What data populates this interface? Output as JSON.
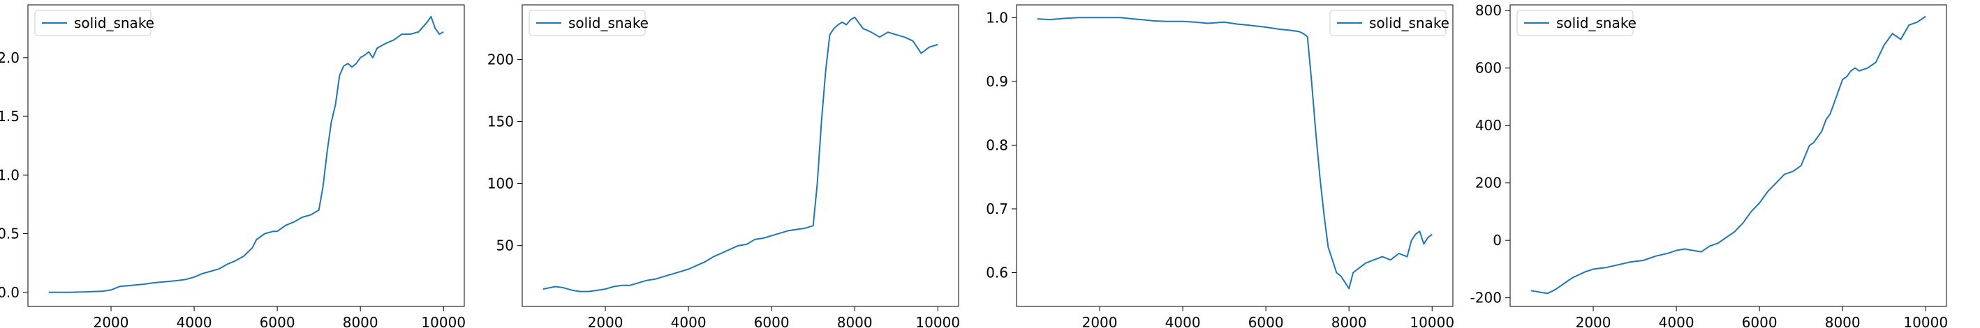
{
  "chart_data": [
    {
      "type": "line",
      "title": "",
      "xlabel": "",
      "ylabel": "",
      "xlim": [
        0,
        10500
      ],
      "ylim": [
        -0.12,
        2.45
      ],
      "xticks": [
        2000,
        4000,
        6000,
        8000,
        10000
      ],
      "yticks": [
        0.0,
        0.5,
        1.0,
        1.5,
        2.0
      ],
      "ytick_format": "1",
      "legend": "upper-left",
      "series": [
        {
          "name": "solid_snake",
          "color": "#1f77b4",
          "x": [
            500,
            1000,
            1500,
            1800,
            2000,
            2200,
            2500,
            2800,
            3000,
            3300,
            3600,
            3800,
            4000,
            4200,
            4400,
            4600,
            4800,
            5000,
            5200,
            5400,
            5500,
            5700,
            5900,
            6000,
            6200,
            6400,
            6600,
            6800,
            7000,
            7100,
            7200,
            7300,
            7400,
            7500,
            7600,
            7700,
            7800,
            7900,
            8000,
            8100,
            8200,
            8300,
            8400,
            8600,
            8800,
            9000,
            9200,
            9400,
            9600,
            9700,
            9800,
            9900,
            10000
          ],
          "y": [
            0.0,
            0.0,
            0.005,
            0.01,
            0.02,
            0.05,
            0.06,
            0.07,
            0.08,
            0.09,
            0.1,
            0.11,
            0.13,
            0.16,
            0.18,
            0.2,
            0.24,
            0.27,
            0.31,
            0.38,
            0.45,
            0.5,
            0.52,
            0.52,
            0.57,
            0.6,
            0.64,
            0.66,
            0.7,
            0.9,
            1.2,
            1.45,
            1.6,
            1.85,
            1.93,
            1.95,
            1.92,
            1.95,
            2.0,
            2.02,
            2.05,
            2.0,
            2.08,
            2.12,
            2.15,
            2.2,
            2.2,
            2.22,
            2.3,
            2.35,
            2.25,
            2.2,
            2.22
          ]
        }
      ]
    },
    {
      "type": "line",
      "title": "",
      "xlabel": "",
      "ylabel": "",
      "xlim": [
        0,
        10500
      ],
      "ylim": [
        1,
        244
      ],
      "xticks": [
        2000,
        4000,
        6000,
        8000,
        10000
      ],
      "yticks": [
        50,
        100,
        150,
        200
      ],
      "ytick_format": "0",
      "legend": "upper-left",
      "series": [
        {
          "name": "solid_snake",
          "color": "#1f77b4",
          "x": [
            500,
            800,
            1000,
            1200,
            1400,
            1600,
            2000,
            2200,
            2400,
            2600,
            2800,
            3000,
            3200,
            3400,
            3600,
            3800,
            4000,
            4200,
            4400,
            4600,
            4800,
            5000,
            5200,
            5400,
            5600,
            5800,
            6000,
            6200,
            6400,
            6600,
            6800,
            7000,
            7100,
            7200,
            7300,
            7400,
            7500,
            7600,
            7700,
            7800,
            7900,
            8000,
            8200,
            8400,
            8600,
            8800,
            9000,
            9200,
            9400,
            9600,
            9800,
            10000
          ],
          "y": [
            15,
            17,
            16,
            14,
            13,
            13,
            15,
            17,
            18,
            18,
            20,
            22,
            23,
            25,
            27,
            29,
            31,
            34,
            37,
            41,
            44,
            47,
            50,
            51,
            55,
            56,
            58,
            60,
            62,
            63,
            64,
            66,
            100,
            150,
            190,
            220,
            225,
            228,
            230,
            228,
            232,
            234,
            225,
            222,
            218,
            222,
            220,
            218,
            215,
            205,
            210,
            212
          ]
        }
      ]
    },
    {
      "type": "line",
      "title": "",
      "xlabel": "",
      "ylabel": "",
      "xlim": [
        0,
        10500
      ],
      "ylim": [
        0.547,
        1.02
      ],
      "xticks": [
        2000,
        4000,
        6000,
        8000,
        10000
      ],
      "yticks": [
        0.6,
        0.7,
        0.8,
        0.9,
        1.0
      ],
      "ytick_format": "1",
      "legend": "upper-right",
      "series": [
        {
          "name": "solid_snake",
          "color": "#1f77b4",
          "x": [
            500,
            800,
            1000,
            1200,
            1500,
            2000,
            2500,
            2800,
            3000,
            3300,
            3600,
            4000,
            4300,
            4600,
            5000,
            5300,
            5600,
            6000,
            6300,
            6600,
            6800,
            6900,
            7000,
            7100,
            7200,
            7300,
            7400,
            7500,
            7600,
            7700,
            7800,
            7900,
            8000,
            8100,
            8200,
            8400,
            8600,
            8800,
            9000,
            9200,
            9400,
            9500,
            9600,
            9700,
            9800,
            9900,
            10000
          ],
          "y": [
            0.998,
            0.997,
            0.998,
            0.999,
            1.0,
            1.0,
            1.0,
            0.998,
            0.997,
            0.995,
            0.994,
            0.994,
            0.993,
            0.991,
            0.993,
            0.99,
            0.988,
            0.985,
            0.982,
            0.98,
            0.978,
            0.975,
            0.97,
            0.9,
            0.82,
            0.75,
            0.69,
            0.64,
            0.62,
            0.6,
            0.595,
            0.585,
            0.575,
            0.6,
            0.605,
            0.615,
            0.62,
            0.625,
            0.62,
            0.63,
            0.625,
            0.65,
            0.66,
            0.665,
            0.645,
            0.655,
            0.66
          ]
        }
      ]
    },
    {
      "type": "line",
      "title": "",
      "xlabel": "",
      "ylabel": "",
      "xlim": [
        0,
        10500
      ],
      "ylim": [
        -230,
        820
      ],
      "xticks": [
        2000,
        4000,
        6000,
        8000,
        10000
      ],
      "yticks": [
        -200,
        0,
        200,
        400,
        600,
        800
      ],
      "ytick_format": "0",
      "legend": "upper-left",
      "series": [
        {
          "name": "solid_snake",
          "color": "#1f77b4",
          "x": [
            500,
            700,
            900,
            1100,
            1300,
            1500,
            1800,
            2000,
            2300,
            2600,
            2900,
            3200,
            3500,
            3800,
            4000,
            4200,
            4400,
            4600,
            4800,
            5000,
            5200,
            5400,
            5600,
            5800,
            6000,
            6200,
            6400,
            6600,
            6800,
            7000,
            7200,
            7300,
            7400,
            7500,
            7600,
            7700,
            7800,
            7900,
            8000,
            8100,
            8200,
            8300,
            8400,
            8600,
            8800,
            9000,
            9200,
            9400,
            9600,
            9800,
            10000
          ],
          "y": [
            -175,
            -180,
            -185,
            -170,
            -150,
            -130,
            -110,
            -100,
            -95,
            -85,
            -75,
            -70,
            -55,
            -45,
            -35,
            -30,
            -35,
            -40,
            -20,
            -10,
            10,
            30,
            60,
            100,
            130,
            170,
            200,
            230,
            240,
            260,
            330,
            340,
            360,
            380,
            420,
            440,
            480,
            520,
            560,
            570,
            590,
            600,
            590,
            600,
            620,
            680,
            720,
            700,
            750,
            760,
            780
          ]
        }
      ]
    }
  ]
}
